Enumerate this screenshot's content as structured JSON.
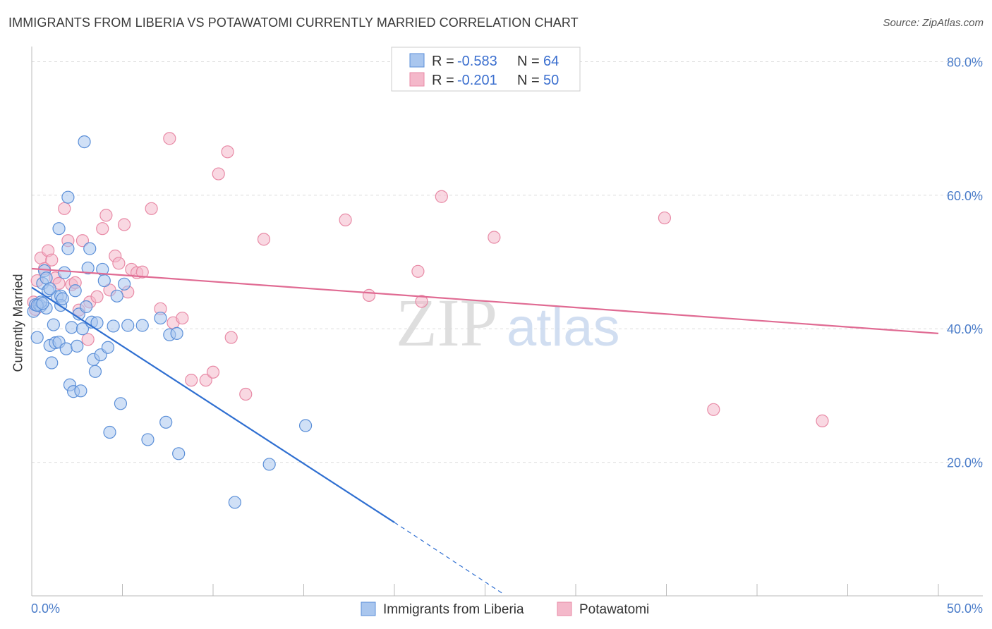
{
  "title": "IMMIGRANTS FROM LIBERIA VS POTAWATOMI CURRENTLY MARRIED CORRELATION CHART",
  "source": "Source: ZipAtlas.com",
  "watermark": {
    "zip": "ZIP",
    "atlas": "atlas"
  },
  "colors": {
    "blue_fill": "#a9c6ee",
    "blue_stroke": "#5b8fd8",
    "blue_line": "#2f6fd1",
    "pink_fill": "#f4b8ca",
    "pink_stroke": "#e88aa6",
    "pink_line": "#e06b93",
    "tick_text": "#4a7cc9",
    "grid": "#dddddd"
  },
  "legend": {
    "rows": [
      {
        "r_label": "R =",
        "r_value": "-0.583",
        "n_label": "N =",
        "n_value": "64",
        "series": "blue"
      },
      {
        "r_label": "R =",
        "r_value": "-0.201",
        "n_label": "N =",
        "n_value": "50",
        "series": "pink"
      }
    ]
  },
  "chart_data": {
    "type": "scatter",
    "title": "IMMIGRANTS FROM LIBERIA VS POTAWATOMI CURRENTLY MARRIED CORRELATION CHART",
    "xlabel": "",
    "ylabel": "Currently Married",
    "xlim": [
      0,
      50
    ],
    "ylim": [
      0,
      81
    ],
    "x_tick_labels": [
      "0.0%",
      "50.0%"
    ],
    "y_ticks": [
      20,
      40,
      60,
      80
    ],
    "y_tick_labels": [
      "20.0%",
      "40.0%",
      "60.0%",
      "80.0%"
    ],
    "grid": true,
    "legend_position": "top-center",
    "series": [
      {
        "name": "Immigrants from Liberia",
        "color": "blue",
        "trend": {
          "x0": 0.0,
          "y0": 46.2,
          "x1": 20.0,
          "y1": 11.0,
          "dash_to_x": 26.0,
          "dash_to_y": 0.3
        },
        "points": [
          [
            0.1,
            42.6
          ],
          [
            0.2,
            43.6
          ],
          [
            0.3,
            38.7
          ],
          [
            0.4,
            43.6
          ],
          [
            0.5,
            43.4
          ],
          [
            0.6,
            46.8
          ],
          [
            0.7,
            48.7
          ],
          [
            0.8,
            47.6
          ],
          [
            0.8,
            43.1
          ],
          [
            0.9,
            45.7
          ],
          [
            1.0,
            37.5
          ],
          [
            1.1,
            34.9
          ],
          [
            1.2,
            40.6
          ],
          [
            1.3,
            37.9
          ],
          [
            1.4,
            44.8
          ],
          [
            1.5,
            38.0
          ],
          [
            1.6,
            44.9
          ],
          [
            1.6,
            43.5
          ],
          [
            1.7,
            44.5
          ],
          [
            1.8,
            48.4
          ],
          [
            1.9,
            37.0
          ],
          [
            2.0,
            59.7
          ],
          [
            2.1,
            31.6
          ],
          [
            2.2,
            40.2
          ],
          [
            2.3,
            30.6
          ],
          [
            2.4,
            45.7
          ],
          [
            2.5,
            37.4
          ],
          [
            2.6,
            42.2
          ],
          [
            2.7,
            30.7
          ],
          [
            2.8,
            40.0
          ],
          [
            2.9,
            68.0
          ],
          [
            3.0,
            43.3
          ],
          [
            3.1,
            49.1
          ],
          [
            3.2,
            52.0
          ],
          [
            3.3,
            41.0
          ],
          [
            3.4,
            35.4
          ],
          [
            3.5,
            33.6
          ],
          [
            3.6,
            40.9
          ],
          [
            3.8,
            36.1
          ],
          [
            3.9,
            48.9
          ],
          [
            4.0,
            47.2
          ],
          [
            4.2,
            37.2
          ],
          [
            4.3,
            24.5
          ],
          [
            4.5,
            40.4
          ],
          [
            4.7,
            44.9
          ],
          [
            4.9,
            28.8
          ],
          [
            5.1,
            46.7
          ],
          [
            5.3,
            40.5
          ],
          [
            6.1,
            40.5
          ],
          [
            6.4,
            23.4
          ],
          [
            7.1,
            41.6
          ],
          [
            7.4,
            26.0
          ],
          [
            7.6,
            39.1
          ],
          [
            8.0,
            39.3
          ],
          [
            8.1,
            21.3
          ],
          [
            11.2,
            14.0
          ],
          [
            13.1,
            19.7
          ],
          [
            15.1,
            25.5
          ],
          [
            1.5,
            55.0
          ],
          [
            2.0,
            52.0
          ],
          [
            0.5,
            44.0
          ],
          [
            1.0,
            46.0
          ],
          [
            0.3,
            43.5
          ],
          [
            0.6,
            43.8
          ]
        ]
      },
      {
        "name": "Potawatomi",
        "color": "pink",
        "trend": {
          "x0": 0.0,
          "y0": 49.0,
          "x1": 50.0,
          "y1": 39.3
        },
        "points": [
          [
            0.1,
            44.0
          ],
          [
            0.2,
            42.9
          ],
          [
            0.3,
            47.2
          ],
          [
            0.5,
            50.6
          ],
          [
            0.7,
            49.0
          ],
          [
            0.9,
            51.7
          ],
          [
            1.1,
            50.3
          ],
          [
            1.3,
            47.6
          ],
          [
            1.5,
            46.8
          ],
          [
            1.8,
            58.0
          ],
          [
            2.0,
            53.2
          ],
          [
            2.2,
            46.6
          ],
          [
            2.4,
            46.9
          ],
          [
            2.6,
            42.8
          ],
          [
            2.8,
            53.2
          ],
          [
            3.1,
            38.4
          ],
          [
            3.2,
            44.0
          ],
          [
            3.6,
            44.8
          ],
          [
            3.9,
            55.0
          ],
          [
            4.1,
            57.0
          ],
          [
            4.3,
            45.8
          ],
          [
            4.6,
            50.9
          ],
          [
            4.8,
            49.8
          ],
          [
            5.1,
            55.6
          ],
          [
            5.3,
            45.5
          ],
          [
            5.5,
            48.9
          ],
          [
            5.8,
            48.4
          ],
          [
            6.1,
            48.5
          ],
          [
            6.6,
            58.0
          ],
          [
            7.1,
            43.0
          ],
          [
            7.6,
            68.5
          ],
          [
            7.8,
            40.9
          ],
          [
            8.3,
            41.6
          ],
          [
            8.8,
            32.3
          ],
          [
            9.6,
            32.3
          ],
          [
            10.0,
            33.5
          ],
          [
            10.3,
            63.2
          ],
          [
            10.8,
            66.5
          ],
          [
            11.0,
            38.7
          ],
          [
            11.8,
            30.2
          ],
          [
            12.8,
            53.4
          ],
          [
            17.3,
            56.3
          ],
          [
            18.6,
            45.0
          ],
          [
            21.3,
            48.6
          ],
          [
            21.5,
            44.1
          ],
          [
            22.6,
            59.8
          ],
          [
            25.5,
            53.7
          ],
          [
            34.9,
            56.6
          ],
          [
            37.6,
            27.9
          ],
          [
            43.6,
            26.2
          ]
        ]
      }
    ]
  }
}
